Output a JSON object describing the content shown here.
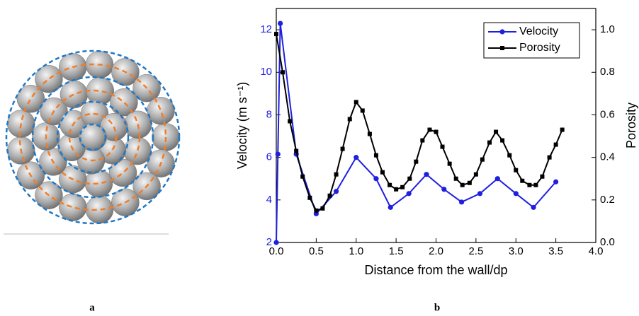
{
  "panel_labels": [
    "a",
    "b"
  ],
  "chart_data": {
    "type": "line",
    "x_label": "Distance from the wall/dp",
    "y_label": "Velocity (m s⁻¹)",
    "y2_label": "Porosity",
    "xlim": [
      0,
      4
    ],
    "ylim": [
      2,
      13
    ],
    "y2lim": [
      0,
      1.1
    ],
    "xticks": [
      {
        "value": 0,
        "label": "0.0"
      },
      {
        "value": 0.5,
        "label": "0.5"
      },
      {
        "value": 1,
        "label": "1.0"
      },
      {
        "value": 1.5,
        "label": "1.5"
      },
      {
        "value": 2,
        "label": "2.0"
      },
      {
        "value": 2.5,
        "label": "2.5"
      },
      {
        "value": 3,
        "label": "3.0"
      },
      {
        "value": 3.5,
        "label": "3.5"
      },
      {
        "value": 4,
        "label": "4.0"
      }
    ],
    "yticks": [
      2,
      4,
      6,
      8,
      10,
      12
    ],
    "y2ticks": [
      {
        "value": 0,
        "label": "0.0"
      },
      {
        "value": 0.2,
        "label": "0.2"
      },
      {
        "value": 0.4,
        "label": "0.4"
      },
      {
        "value": 0.6,
        "label": "0.6"
      },
      {
        "value": 0.8,
        "label": "0.8"
      },
      {
        "value": 1,
        "label": "1.0"
      }
    ],
    "y_axis_color": "#1f1fe0",
    "legend": "upper right",
    "series": [
      {
        "name": "Velocity",
        "color": "#1f1fe0",
        "marker": "circle",
        "x": [
          0,
          0.02,
          0.05,
          0.25,
          0.5,
          0.75,
          1.0,
          1.25,
          1.43,
          1.66,
          1.88,
          2.1,
          2.32,
          2.55,
          2.77,
          3.0,
          3.22,
          3.5
        ],
        "values": [
          2,
          6.15,
          12.3,
          6.15,
          3.35,
          4.4,
          6.0,
          5.0,
          3.65,
          4.3,
          5.2,
          4.5,
          3.9,
          4.3,
          5.0,
          4.3,
          3.65,
          4.85
        ]
      },
      {
        "name": "Porosity",
        "color": "#000000",
        "marker": "square",
        "axis": "y2",
        "x": [
          0,
          0.08,
          0.17,
          0.25,
          0.33,
          0.42,
          0.5,
          0.58,
          0.67,
          0.75,
          0.83,
          0.92,
          1.0,
          1.08,
          1.17,
          1.25,
          1.33,
          1.42,
          1.5,
          1.58,
          1.67,
          1.75,
          1.83,
          1.92,
          2.0,
          2.08,
          2.17,
          2.25,
          2.33,
          2.42,
          2.5,
          2.58,
          2.67,
          2.75,
          2.83,
          2.92,
          3.0,
          3.08,
          3.17,
          3.25,
          3.33,
          3.42,
          3.5,
          3.58
        ],
        "values": [
          0.98,
          0.8,
          0.57,
          0.43,
          0.31,
          0.21,
          0.15,
          0.16,
          0.22,
          0.32,
          0.44,
          0.58,
          0.66,
          0.62,
          0.51,
          0.41,
          0.33,
          0.27,
          0.25,
          0.26,
          0.3,
          0.38,
          0.48,
          0.53,
          0.52,
          0.45,
          0.37,
          0.3,
          0.27,
          0.28,
          0.32,
          0.39,
          0.47,
          0.52,
          0.48,
          0.41,
          0.34,
          0.29,
          0.27,
          0.27,
          0.31,
          0.4,
          0.46,
          0.53
        ]
      }
    ]
  }
}
